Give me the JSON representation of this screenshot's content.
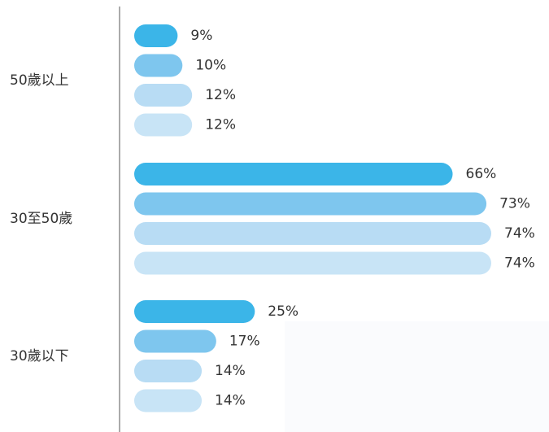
{
  "chart_data": {
    "type": "bar",
    "orientation": "horizontal",
    "categories": [
      "50歲以上",
      "30至50歲",
      "30歲以下"
    ],
    "series": [
      {
        "color": "#3bb5e8",
        "values": [
          9,
          66,
          25
        ],
        "value_labels": [
          "9%",
          "66%",
          "25%"
        ]
      },
      {
        "color": "#7ec6ee",
        "values": [
          10,
          73,
          17
        ],
        "value_labels": [
          "10%",
          "73%",
          "17%"
        ]
      },
      {
        "color": "#b8dcf4",
        "values": [
          12,
          74,
          14
        ],
        "value_labels": [
          "12%",
          "74%",
          "14%"
        ]
      },
      {
        "color": "#c8e4f6",
        "values": [
          12,
          74,
          14
        ],
        "value_labels": [
          "12%",
          "74%",
          "14%"
        ]
      }
    ]
  }
}
